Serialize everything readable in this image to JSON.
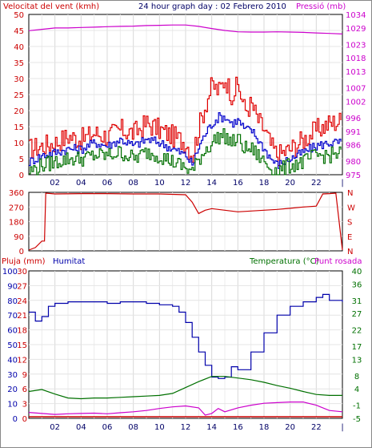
{
  "header": {
    "wind_label": "Velocitat del vent (kmh)",
    "title": "24 hour graph day : 02 Febrero 2010",
    "pressure_label": "Pressió (mb)"
  },
  "lower_header": {
    "rain_label": "Pluja (mm)",
    "humidity_label": "Humitat",
    "temp_label": "Temperatura (°C)",
    "dew_label": "Punt rosada"
  },
  "colors": {
    "wind_gust": "#e00000",
    "wind_avg": "#0000cc",
    "wind_low": "#007000",
    "pressure": "#cc00cc",
    "direction": "#cc0000",
    "humidity": "#0000aa",
    "temperature": "#007000",
    "dewpoint": "#cc00cc",
    "rain": "#cc0000",
    "grid": "#d0d0d0"
  },
  "chart_data": [
    {
      "type": "line",
      "title": "24 hour graph day : 02 Febrero 2010",
      "xlabel": "",
      "ylabel": "Velocitat del vent (kmh)",
      "y2label": "Pressió (mb)",
      "x_ticks": [
        "02",
        "04",
        "06",
        "08",
        "10",
        "12",
        "14",
        "16",
        "18",
        "20",
        "22"
      ],
      "x_range": [
        0,
        24
      ],
      "grid": true,
      "y_left": {
        "range": [
          0,
          50
        ],
        "ticks": [
          0,
          5,
          10,
          15,
          20,
          25,
          30,
          35,
          40,
          45,
          50
        ]
      },
      "y_right": {
        "range": [
          975,
          1034
        ],
        "ticks": [
          975,
          980,
          986,
          991,
          996,
          1002,
          1007,
          1013,
          1018,
          1023,
          1029,
          1034
        ]
      },
      "series": [
        {
          "name": "Velocitat del vent (kmh)",
          "axis": "left",
          "color_key": "wind_gust",
          "x": [
            0,
            1,
            2,
            3,
            4,
            5,
            6,
            7,
            8,
            9,
            10,
            11,
            12,
            12.5,
            13,
            13.5,
            14,
            14.5,
            15,
            15.5,
            16,
            16.5,
            17,
            17.5,
            18,
            18.5,
            19,
            20,
            21,
            22,
            23,
            24
          ],
          "y": [
            8,
            9,
            10,
            12,
            11,
            13,
            12,
            14,
            13,
            16,
            14,
            12,
            10,
            6,
            15,
            22,
            28,
            26,
            30,
            25,
            28,
            20,
            22,
            17,
            14,
            9,
            6,
            8,
            11,
            14,
            16,
            17
          ]
        },
        {
          "y": [
            4,
            6,
            7,
            8,
            8,
            10,
            9,
            11,
            9,
            11,
            10,
            8,
            6,
            3,
            9,
            13,
            16,
            18,
            18,
            16,
            17,
            14,
            14,
            11,
            8,
            5,
            3,
            5,
            7,
            9,
            10,
            10
          ]
        },
        {
          "y": [
            1,
            3,
            4,
            5,
            5,
            6,
            6,
            7,
            5,
            7,
            6,
            4,
            2,
            1,
            5,
            8,
            10,
            12,
            12,
            10,
            11,
            8,
            8,
            6,
            4,
            2,
            1,
            3,
            4,
            6,
            6,
            7
          ]
        },
        {
          "name": "Pressió (mb)",
          "axis": "right",
          "color_key": "pressure",
          "x": [
            0,
            1,
            2,
            3,
            4,
            5,
            6,
            7,
            8,
            9,
            10,
            11,
            12,
            13,
            14,
            15,
            16,
            17,
            18,
            19,
            20,
            21,
            22,
            23,
            24
          ],
          "y": [
            1028,
            1028.5,
            1029,
            1029,
            1029.2,
            1029.3,
            1029.5,
            1029.6,
            1029.7,
            1029.9,
            1030,
            1030.1,
            1030.1,
            1029.6,
            1028.8,
            1028.1,
            1027.6,
            1027.5,
            1027.5,
            1027.6,
            1027.5,
            1027.4,
            1027.2,
            1027.0,
            1026.8
          ]
        }
      ]
    },
    {
      "type": "line",
      "ylabel": "",
      "x_range": [
        0,
        24
      ],
      "y_left": {
        "range": [
          0,
          360
        ],
        "ticks": [
          0,
          90,
          180,
          270,
          360
        ]
      },
      "y_right_labels": [
        "N",
        "W",
        "S",
        "E",
        "N"
      ],
      "series": [
        {
          "color_key": "direction",
          "x": [
            0,
            0.5,
            1,
            1.2,
            1.3,
            2,
            4,
            6,
            8,
            10,
            12,
            12.5,
            13,
            13.5,
            14,
            15,
            16,
            17,
            18,
            19,
            20,
            21,
            22,
            22.5,
            23,
            23.5,
            24
          ],
          "y": [
            5,
            20,
            60,
            60,
            355,
            350,
            352,
            352,
            350,
            350,
            345,
            300,
            230,
            250,
            260,
            250,
            240,
            245,
            250,
            255,
            262,
            270,
            275,
            350,
            352,
            355,
            5
          ]
        }
      ]
    },
    {
      "type": "line",
      "ylabel": "Pluja (mm)",
      "x_range": [
        0,
        24
      ],
      "y_rain": {
        "range": [
          0,
          10
        ],
        "ticks": [
          0,
          1,
          2,
          3,
          4,
          5,
          6,
          7,
          8,
          9,
          10
        ]
      },
      "y_hum": {
        "range": [
          0,
          100
        ],
        "ticks": [
          0,
          10,
          20,
          30,
          40,
          50,
          60,
          70,
          80,
          90,
          100
        ]
      },
      "y_temp": {
        "range": [
          -5,
          40
        ],
        "ticks": [
          -5,
          -1,
          4,
          8,
          13,
          17,
          22,
          27,
          31,
          36,
          40
        ]
      },
      "left_ticks": [
        "30",
        "27",
        "24",
        "21",
        "18",
        "15",
        "12",
        "9",
        "6",
        "3",
        "0"
      ],
      "series": [
        {
          "name": "Humitat",
          "axis": "hum",
          "color_key": "humidity",
          "x": [
            0,
            0.5,
            1,
            1.5,
            2,
            3,
            4,
            5,
            6,
            7,
            8,
            9,
            10,
            11,
            11.5,
            12,
            12.5,
            13,
            13.5,
            14,
            14.5,
            15,
            15.5,
            16,
            17,
            18,
            19,
            20,
            21,
            22,
            22.5,
            23,
            24
          ],
          "y": [
            72,
            66,
            69,
            76,
            78,
            79,
            79,
            79,
            78,
            79,
            79,
            78,
            77,
            76,
            72,
            65,
            55,
            45,
            36,
            28,
            27,
            28,
            35,
            33,
            45,
            58,
            70,
            76,
            79,
            82,
            84,
            80,
            79
          ]
        },
        {
          "name": "Temperatura (°C)",
          "axis": "temp",
          "color_key": "temperature",
          "x": [
            0,
            1,
            2,
            3,
            4,
            5,
            6,
            7,
            8,
            9,
            10,
            11,
            12,
            13,
            14,
            15,
            16,
            17,
            18,
            19,
            20,
            21,
            22,
            23,
            24
          ],
          "y": [
            3.2,
            3.8,
            2.4,
            1.2,
            1.0,
            1.2,
            1.2,
            1.4,
            1.6,
            1.8,
            2.0,
            2.6,
            4.4,
            6.2,
            7.8,
            7.8,
            7.3,
            6.8,
            6.0,
            5.0,
            4.2,
            3.2,
            2.3,
            2.0,
            2.0
          ]
        },
        {
          "name": "Punt rosada",
          "axis": "temp",
          "color_key": "dewpoint",
          "x": [
            0,
            1,
            2,
            3,
            4,
            5,
            6,
            7,
            8,
            9,
            10,
            11,
            12,
            13,
            13.5,
            14,
            14.5,
            15,
            16,
            17,
            18,
            19,
            20,
            21,
            22,
            23,
            24
          ],
          "y": [
            -3.2,
            -3.5,
            -3.8,
            -3.6,
            -3.5,
            -3.4,
            -3.6,
            -3.3,
            -3.0,
            -2.6,
            -2.0,
            -1.5,
            -1.2,
            -1.8,
            -4.0,
            -3.5,
            -2.0,
            -3.0,
            -1.8,
            -1.0,
            -0.4,
            -0.2,
            0,
            0,
            -1.0,
            -2.6,
            -3.0
          ]
        }
      ]
    }
  ]
}
